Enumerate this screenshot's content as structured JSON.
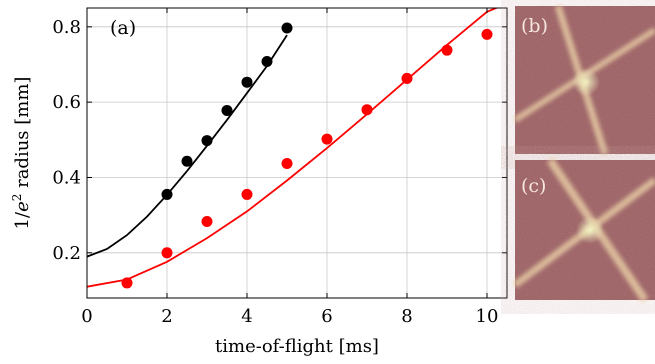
{
  "chart_data": [
    {
      "panel_label": "(a)",
      "type": "scatter",
      "xlabel": "time-of-flight [ms]",
      "ylabel_prefix": "1/",
      "ylabel_italic": "e",
      "ylabel_sup": "2",
      "ylabel_suffix": " radius [mm]",
      "xlim": [
        0,
        10.5
      ],
      "ylim": [
        0.08,
        0.85
      ],
      "xticks": [
        0,
        2,
        4,
        6,
        8,
        10
      ],
      "yticks": [
        0.2,
        0.4,
        0.6,
        0.8
      ],
      "xtick_labels": [
        "0",
        "2",
        "4",
        "6",
        "8",
        "10"
      ],
      "ytick_labels": [
        "0.2",
        "0.4",
        "0.6",
        "0.8"
      ],
      "grid": true,
      "series": [
        {
          "color": "#000000",
          "points": [
            {
              "x": 2.0,
              "y": 0.355
            },
            {
              "x": 2.5,
              "y": 0.443
            },
            {
              "x": 3.0,
              "y": 0.498
            },
            {
              "x": 3.5,
              "y": 0.578
            },
            {
              "x": 4.0,
              "y": 0.653
            },
            {
              "x": 4.5,
              "y": 0.708
            },
            {
              "x": 5.0,
              "y": 0.797
            }
          ],
          "fit": {
            "x": [
              0,
              0.5,
              1,
              1.5,
              2,
              2.5,
              3,
              3.5,
              4,
              4.5,
              5
            ],
            "y": [
              0.19,
              0.21,
              0.247,
              0.296,
              0.354,
              0.417,
              0.484,
              0.553,
              0.624,
              0.696,
              0.778
            ]
          }
        },
        {
          "color": "#ff0000",
          "points": [
            {
              "x": 1,
              "y": 0.12
            },
            {
              "x": 2,
              "y": 0.2
            },
            {
              "x": 3,
              "y": 0.283
            },
            {
              "x": 4,
              "y": 0.355
            },
            {
              "x": 5,
              "y": 0.437
            },
            {
              "x": 6,
              "y": 0.502
            },
            {
              "x": 7,
              "y": 0.58
            },
            {
              "x": 8,
              "y": 0.663
            },
            {
              "x": 9,
              "y": 0.738
            },
            {
              "x": 10,
              "y": 0.78
            }
          ],
          "fit": {
            "x": [
              0,
              1,
              2,
              3,
              4,
              5,
              6,
              7,
              8,
              9,
              10,
              10.5
            ],
            "y": [
              0.11,
              0.129,
              0.176,
              0.239,
              0.31,
              0.392,
              0.478,
              0.568,
              0.66,
              0.752,
              0.84,
              0.862
            ]
          }
        }
      ]
    }
  ],
  "images": [
    {
      "label": "(b)"
    },
    {
      "label": "(c)"
    }
  ]
}
